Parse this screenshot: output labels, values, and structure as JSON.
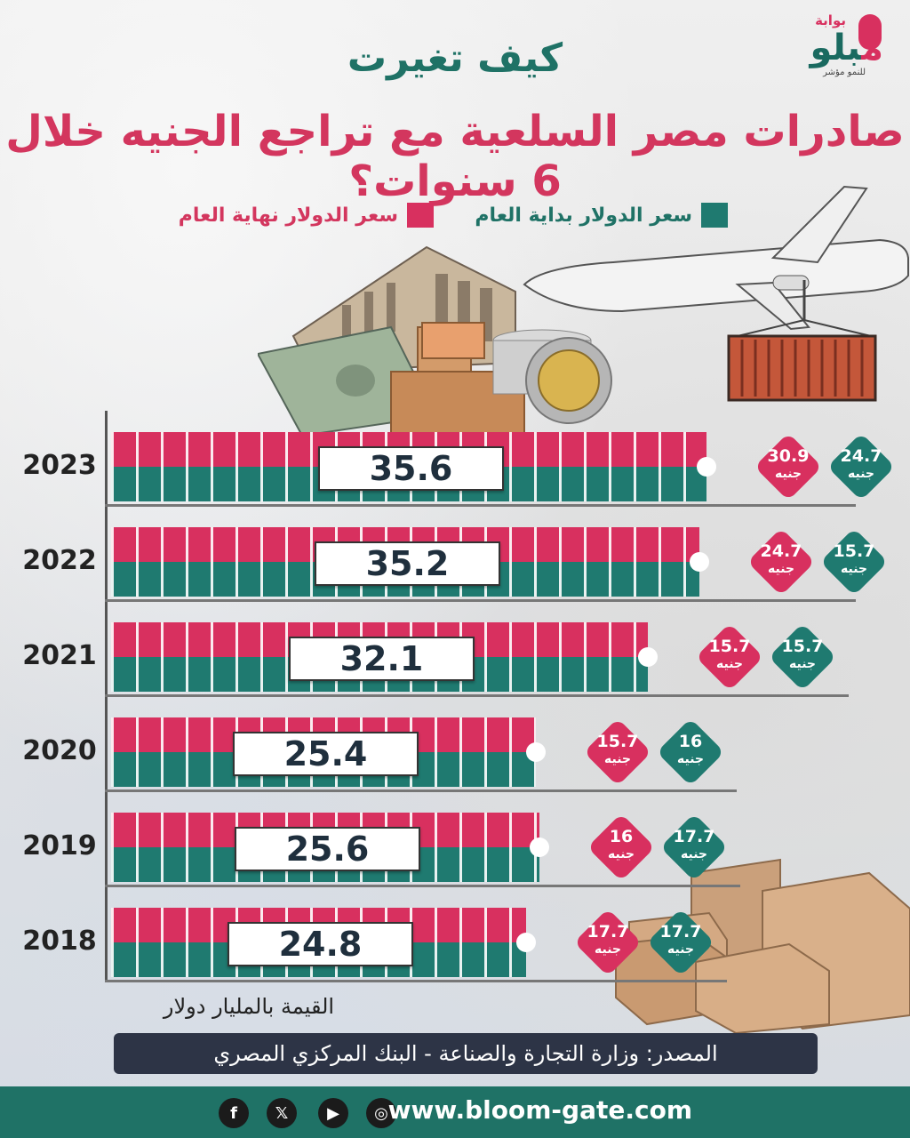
{
  "header": {
    "title_line1": "كيف تغيرت",
    "title_line2": "صادرات مصر السلعية مع تراجع الجنيه خلال 6 سنوات؟",
    "logo_top": "بوابة",
    "logo_main_a": "بلو",
    "logo_main_b": "م",
    "logo_tagline": "للنمو مؤشر"
  },
  "legend": {
    "start": "سعر الدولار بداية العام",
    "end": "سعر الدولار نهاية العام"
  },
  "colors": {
    "teal": "#1f7a70",
    "pink": "#d8305f",
    "navy": "#2d3446"
  },
  "chart_data": {
    "type": "bar",
    "orientation": "horizontal",
    "categories": [
      "2023",
      "2022",
      "2021",
      "2020",
      "2019",
      "2018"
    ],
    "values": [
      35.6,
      35.2,
      32.1,
      25.4,
      25.6,
      24.8
    ],
    "value_labels": [
      "35.6",
      "35.2",
      "32.1",
      "25.4",
      "25.6",
      "24.8"
    ],
    "dollar_start": [
      "24.7",
      "15.7",
      "15.7",
      "16",
      "17.7",
      "17.7"
    ],
    "dollar_end": [
      "30.9",
      "24.7",
      "15.7",
      "15.7",
      "16",
      "17.7"
    ],
    "currency_unit": "جنيه",
    "xlabel": "القيمة بالمليار دولار"
  },
  "source": "المصدر: وزارة التجارة والصناعة - البنك المركزي المصري",
  "footer": {
    "website": "www.bloom-gate.com",
    "icons": [
      "instagram-icon",
      "youtube-icon",
      "x-icon",
      "facebook-icon"
    ]
  }
}
